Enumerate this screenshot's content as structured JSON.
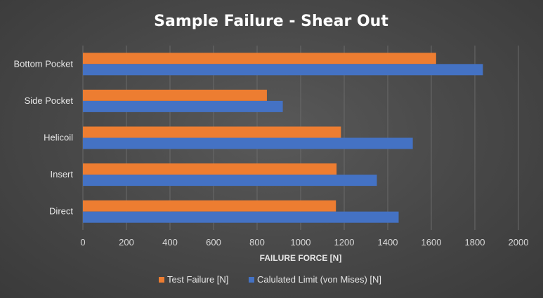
{
  "chart_data": {
    "type": "bar",
    "orientation": "horizontal",
    "title": "Sample Failure - Shear Out",
    "xlabel": "FAILURE FORCE [N]",
    "ylabel": "",
    "categories": [
      "Bottom Pocket",
      "Side Pocket",
      "Helicoil",
      "Insert",
      "Direct"
    ],
    "series": [
      {
        "name": "Test Failure [N]",
        "color": "#ed7d31",
        "values": [
          1622,
          845,
          1185,
          1165,
          1162
        ]
      },
      {
        "name": "Calulated Limit (von Mises) [N]",
        "color": "#4472c4",
        "values": [
          1837,
          918,
          1515,
          1350,
          1450
        ]
      }
    ],
    "xlim": [
      0,
      2000
    ],
    "xticks": [
      0,
      200,
      400,
      600,
      800,
      1000,
      1200,
      1400,
      1600,
      1800,
      2000
    ],
    "grid": true,
    "legend_position": "bottom"
  }
}
